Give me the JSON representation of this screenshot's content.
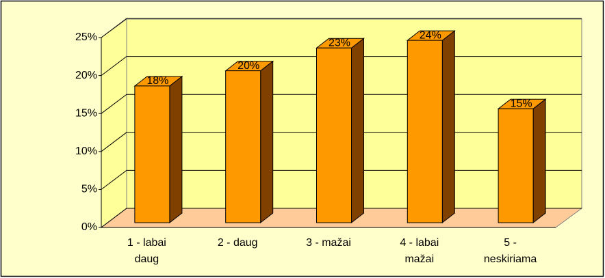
{
  "chart_data": {
    "type": "bar3d",
    "categories": [
      "1 - labai daug",
      "2 - daug",
      "3 - mažai",
      "4 - labai mažai",
      "5 - neskiriama"
    ],
    "values": [
      18,
      20,
      23,
      24,
      15
    ],
    "value_labels": [
      "18%",
      "20%",
      "23%",
      "24%",
      "15%"
    ],
    "color": "#ff9900",
    "ylim": [
      0,
      25
    ],
    "yticks": [
      {
        "value": 0,
        "label": "0%"
      },
      {
        "value": 5,
        "label": "5%"
      },
      {
        "value": 10,
        "label": "10%"
      },
      {
        "value": 15,
        "label": "15%"
      },
      {
        "value": 20,
        "label": "20%"
      },
      {
        "value": 25,
        "label": "25%"
      }
    ],
    "grid": true
  }
}
